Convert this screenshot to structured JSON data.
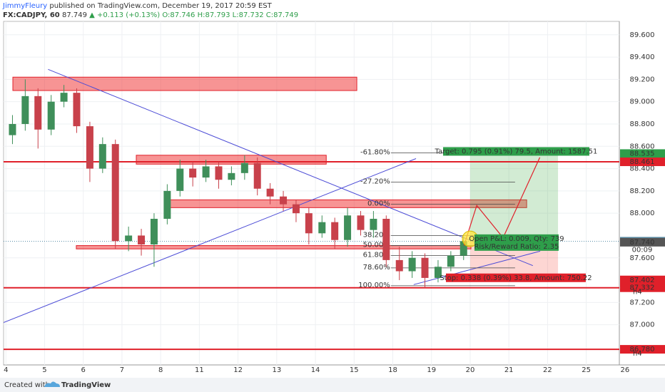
{
  "chart_data": {
    "type": "candlestick",
    "author": "JimmyFleury",
    "title": "published on TradingView.com, December 19, 2017 20:59 EST",
    "symbol": "FX:CADJPY, 60",
    "last": "87.749",
    "change": "▲ +0.113 (+0.13%)",
    "ohlc": "O:87.746 H:87.793 L:87.732 C:87.749",
    "up_color": "#3f8f5a",
    "down_color": "#c8414b",
    "x": [
      0.17,
      0.5,
      0.83,
      1.17,
      1.5,
      1.83,
      2.17,
      2.5,
      2.83,
      3.17,
      3.5,
      3.83,
      4.17,
      4.5,
      4.83,
      5.17,
      5.5,
      5.83,
      6.17,
      6.5,
      6.83,
      7.17,
      7.5,
      7.83,
      8.17,
      8.5,
      8.83,
      9.17,
      9.5,
      9.83,
      10.17,
      10.5,
      10.83,
      11.17,
      11.5,
      11.83
    ],
    "open": [
      88.7,
      88.8,
      89.05,
      88.75,
      89.0,
      89.08,
      88.78,
      88.4,
      88.62,
      87.75,
      87.8,
      87.72,
      87.95,
      88.2,
      88.4,
      88.32,
      88.42,
      88.3,
      88.36,
      88.45,
      88.22,
      88.15,
      88.08,
      88.0,
      87.82,
      87.92,
      87.76,
      87.98,
      87.85,
      87.95,
      87.58,
      87.48,
      87.6,
      87.42,
      87.52,
      87.62
    ],
    "high": [
      88.88,
      89.2,
      89.12,
      89.06,
      89.15,
      89.12,
      88.82,
      88.68,
      88.66,
      87.88,
      87.86,
      88.0,
      88.26,
      88.48,
      88.46,
      88.48,
      88.46,
      88.42,
      88.52,
      88.5,
      88.27,
      88.2,
      88.12,
      88.05,
      87.98,
      87.96,
      88.05,
      88.02,
      88.02,
      87.98,
      87.7,
      87.66,
      87.64,
      87.58,
      87.66,
      87.79
    ],
    "low": [
      88.62,
      88.74,
      88.58,
      88.7,
      88.95,
      88.72,
      88.28,
      88.36,
      87.68,
      87.66,
      87.62,
      87.52,
      87.9,
      88.15,
      88.24,
      88.28,
      88.22,
      88.25,
      88.3,
      88.16,
      88.08,
      88.02,
      87.92,
      87.72,
      87.78,
      87.68,
      87.7,
      87.8,
      87.78,
      87.52,
      87.4,
      87.42,
      87.33,
      87.38,
      87.48,
      87.58
    ],
    "close": [
      88.8,
      89.05,
      88.75,
      89.0,
      89.08,
      88.78,
      88.4,
      88.62,
      87.75,
      87.8,
      87.72,
      87.95,
      88.2,
      88.4,
      88.32,
      88.42,
      88.3,
      88.36,
      88.45,
      88.22,
      88.15,
      88.08,
      88.0,
      87.82,
      87.92,
      87.76,
      87.98,
      87.85,
      87.95,
      87.58,
      87.48,
      87.6,
      87.42,
      87.52,
      87.62,
      87.749
    ],
    "xlim": [
      -0.06,
      16.15
    ],
    "xticks": [
      {
        "value": 0,
        "label": "4"
      },
      {
        "value": 1,
        "label": "5"
      },
      {
        "value": 2,
        "label": "6"
      },
      {
        "value": 3,
        "label": "7"
      },
      {
        "value": 4,
        "label": "8"
      },
      {
        "value": 5,
        "label": "11"
      },
      {
        "value": 6,
        "label": "12"
      },
      {
        "value": 7,
        "label": "13"
      },
      {
        "value": 8,
        "label": "14"
      },
      {
        "value": 9,
        "label": "15"
      },
      {
        "value": 10,
        "label": "18"
      },
      {
        "value": 11,
        "label": "19"
      },
      {
        "value": 12,
        "label": "20"
      },
      {
        "value": 13,
        "label": "21"
      },
      {
        "value": 14,
        "label": "22"
      },
      {
        "value": 15,
        "label": "25"
      },
      {
        "value": 16,
        "label": "26"
      }
    ],
    "ylim": [
      86.64,
      89.72
    ],
    "yticks": [
      {
        "value": 87.0,
        "label": "87.000"
      },
      {
        "value": 87.2,
        "label": "87.200"
      },
      {
        "value": 87.6,
        "label": "87.600"
      },
      {
        "value": 88.0,
        "label": "88.000"
      },
      {
        "value": 88.2,
        "label": "88.200"
      },
      {
        "value": 88.4,
        "label": "88.400"
      },
      {
        "value": 88.6,
        "label": "88.600"
      },
      {
        "value": 88.8,
        "label": "88.800"
      },
      {
        "value": 89.0,
        "label": "89.000"
      },
      {
        "value": 89.2,
        "label": "89.200"
      },
      {
        "value": 89.4,
        "label": "89.400"
      },
      {
        "value": 89.6,
        "label": "89.600"
      }
    ],
    "grid": true,
    "levels": [
      {
        "value": 88.535,
        "label": "88.535",
        "color": "#2e9e4a"
      },
      {
        "value": 88.461,
        "label": "88.461",
        "color": "#e0202a",
        "line": true
      },
      {
        "value": 87.749,
        "label": "87.749",
        "color": "#5a8fa8",
        "style": "dotted"
      },
      {
        "value": 87.74,
        "label": "87.740",
        "color": "#555555"
      },
      {
        "value": 87.402,
        "label": "87.402",
        "color": "#e0202a"
      },
      {
        "value": 87.332,
        "label": "87.332",
        "color": "#e0202a",
        "line": true,
        "note": "h4"
      },
      {
        "value": 86.78,
        "label": "86.780",
        "color": "#e0202a",
        "line": true,
        "note": "h4"
      }
    ],
    "countdown": "00:09",
    "zones": [
      {
        "x": [
          0.18,
          9.07
        ],
        "y": [
          89.1,
          89.22
        ]
      },
      {
        "x": [
          3.37,
          8.28
        ],
        "y": [
          88.44,
          88.52
        ]
      },
      {
        "x": [
          4.24,
          13.46
        ],
        "y": [
          88.05,
          88.12
        ]
      },
      {
        "x": [
          1.82,
          12.02
        ],
        "y": [
          87.68,
          87.71
        ]
      }
    ],
    "trendlines": [
      {
        "x": [
          1.09,
          13.62
        ],
        "y": [
          89.29,
          87.53
        ],
        "color": "#4b4bd6"
      },
      {
        "x": [
          -0.06,
          10.6
        ],
        "y": [
          87.02,
          88.49
        ],
        "color": "#4b4bd6"
      },
      {
        "x": [
          10.54,
          13.81
        ],
        "y": [
          87.36,
          87.66
        ],
        "color": "#4b4bd6"
      }
    ],
    "fib": {
      "x": [
        9.95,
        13.16
      ],
      "levels": [
        {
          "label": "-61.80%",
          "value": 88.54
        },
        {
          "label": "-27.20%",
          "value": 88.28
        },
        {
          "label": "0.00%",
          "value": 88.08
        },
        {
          "label": "38.20%",
          "value": 87.8
        },
        {
          "label": "50.00%",
          "value": 87.71
        },
        {
          "label": "61.80%",
          "value": 87.62
        },
        {
          "label": "78.60%",
          "value": 87.51
        },
        {
          "label": "100.00%",
          "value": 87.35
        }
      ]
    },
    "position": {
      "x": [
        12.0,
        14.27
      ],
      "entry": 87.74,
      "target": 88.535,
      "stop": 87.402,
      "target_label": "Target: 0.795 (0.91%) 79.5, Amount: 1587.51",
      "pnl_label": "Open P&L: 0.009, Qty: 739",
      "rr_label": "Risk/Reward Ratio: 2.35",
      "stop_label": "Stop: 0.338 (0.39%) 33.8, Amount: 750.22"
    },
    "projection": {
      "x": [
        11.84,
        12.17,
        12.85,
        13.8
      ],
      "y": [
        87.71,
        88.07,
        87.78,
        88.5
      ],
      "color": "#e0202a"
    },
    "highlight": {
      "x": 12.0,
      "y": 87.77
    },
    "footer": "Created with",
    "brand": "TradingView"
  }
}
